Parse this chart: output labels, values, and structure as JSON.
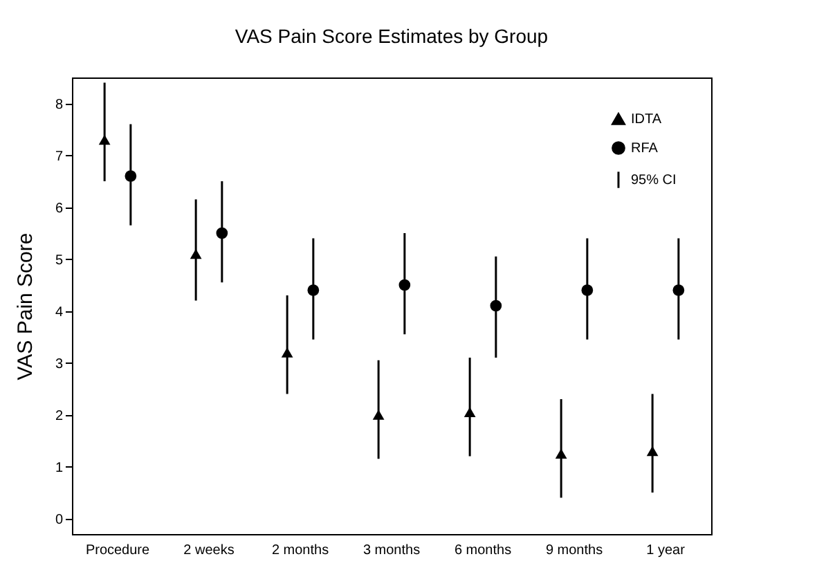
{
  "chart_data": {
    "type": "scatter",
    "title": "VAS Pain Score Estimates by Group",
    "ylabel": "VAS Pain Score",
    "categories": [
      "Procedure",
      "2 weeks",
      "2 months",
      "3 months",
      "6 months",
      "9 months",
      "1 year"
    ],
    "series": [
      {
        "name": "IDTA",
        "color": "#000000",
        "marker": "triangle",
        "values": [
          7.3,
          5.1,
          3.2,
          2.0,
          2.05,
          1.25,
          1.3
        ],
        "errors": [
          [
            6.5,
            8.4
          ],
          [
            4.2,
            6.15
          ],
          [
            2.4,
            4.3
          ],
          [
            1.15,
            3.05
          ],
          [
            1.2,
            3.1
          ],
          [
            0.4,
            2.3
          ],
          [
            0.5,
            2.4
          ]
        ]
      },
      {
        "name": "RFA",
        "color": "#000000",
        "marker": "circle",
        "values": [
          6.6,
          5.5,
          4.4,
          4.5,
          4.1,
          4.4,
          4.4
        ],
        "errors": [
          [
            5.65,
            7.6
          ],
          [
            4.55,
            6.5
          ],
          [
            3.45,
            5.4
          ],
          [
            3.55,
            5.5
          ],
          [
            3.1,
            5.05
          ],
          [
            3.45,
            5.4
          ],
          [
            3.45,
            5.4
          ]
        ]
      }
    ],
    "annotations": [
      "95% CI"
    ],
    "ylim": [
      -0.3,
      8.5
    ],
    "yticks": [
      0,
      1,
      2,
      3,
      4,
      5,
      6,
      7,
      8
    ],
    "grid": false,
    "legend": "top right"
  }
}
